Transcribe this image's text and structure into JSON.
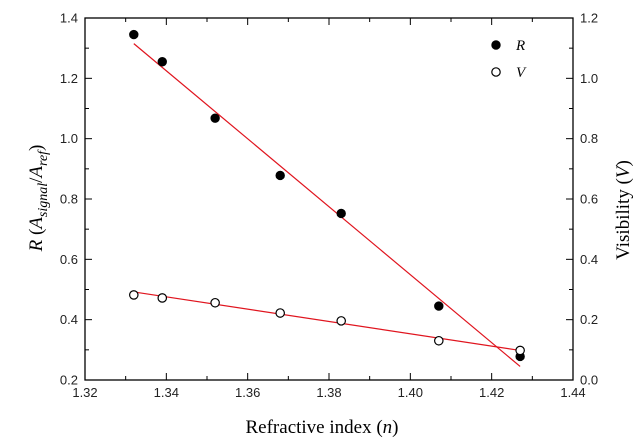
{
  "chart_data": {
    "type": "scatter",
    "x_axis": {
      "label_main": "Refractive index",
      "label_var": "n",
      "range": [
        1.32,
        1.44
      ],
      "ticks": [
        "1.32",
        "1.34",
        "1.36",
        "1.38",
        "1.40",
        "1.42",
        "1.44"
      ]
    },
    "y_left": {
      "label_var": "R",
      "label_sub1": "signal",
      "label_sub2": "ref",
      "range": [
        0.2,
        1.4
      ],
      "ticks": [
        "0.2",
        "0.4",
        "0.6",
        "0.8",
        "1.0",
        "1.2",
        "1.4"
      ]
    },
    "y_right": {
      "label_main": "Visibility",
      "label_var": "V",
      "range": [
        0.0,
        1.2
      ],
      "ticks": [
        "0.0",
        "0.2",
        "0.4",
        "0.6",
        "0.8",
        "1.0",
        "1.2"
      ]
    },
    "series": [
      {
        "name": "R",
        "axis": "left",
        "marker": "filled-circle",
        "x": [
          1.332,
          1.339,
          1.352,
          1.368,
          1.383,
          1.407,
          1.427
        ],
        "y": [
          1.345,
          1.255,
          1.068,
          0.878,
          0.752,
          0.445,
          0.278
        ],
        "fit": {
          "x": [
            1.332,
            1.427
          ],
          "y": [
            1.315,
            0.245
          ]
        }
      },
      {
        "name": "V",
        "axis": "right",
        "marker": "open-circle",
        "x": [
          1.332,
          1.339,
          1.352,
          1.368,
          1.383,
          1.407,
          1.427
        ],
        "y": [
          0.282,
          0.272,
          0.256,
          0.222,
          0.196,
          0.13,
          0.098
        ],
        "fit": {
          "x": [
            1.332,
            1.427
          ],
          "y": [
            0.292,
            0.098
          ]
        }
      }
    ],
    "fit_color": "#e0141e",
    "legend_placement": "top-right",
    "grid": false
  }
}
